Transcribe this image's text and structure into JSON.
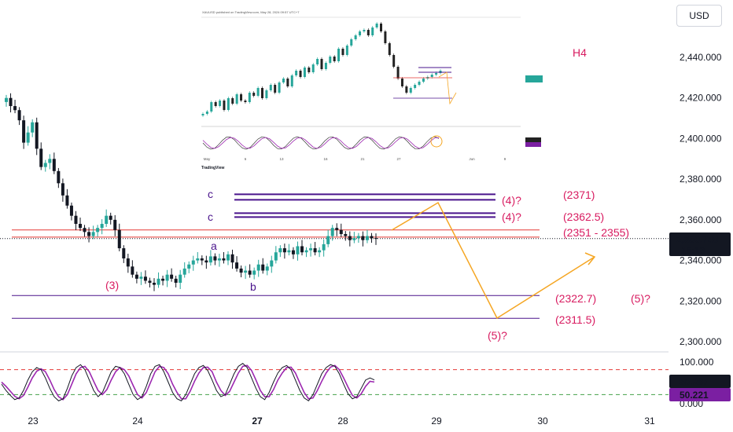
{
  "currency": "USD",
  "timeframe": "H4",
  "inset": {
    "header": "XAUUSD published on TradingView.com, May 28, 2024 09:57 UTC+7",
    "logo": "TradingView",
    "x_labels": [
      "May",
      "6",
      "13",
      "16",
      "21",
      "27",
      "Jun",
      "9"
    ]
  },
  "chart_data": {
    "type": "candlestick",
    "y_ticks": [
      "2,440.000",
      "2,420.000",
      "2,400.000",
      "2,380.000",
      "2,360.000",
      "2,340.000",
      "2,320.000",
      "2,300.000"
    ],
    "y_tick_values": [
      2440,
      2420,
      2400,
      2380,
      2360,
      2340,
      2320,
      2300
    ],
    "x_ticks": [
      "23",
      "24",
      "27",
      "28",
      "29",
      "30",
      "31"
    ],
    "ylim": [
      2295,
      2462
    ],
    "last_price": "2,350.740",
    "last_price_value": 2350.74,
    "countdown": "15:13",
    "close_series": [
      2420,
      2416,
      2414,
      2409,
      2398,
      2403,
      2408,
      2395,
      2386,
      2388,
      2390,
      2384,
      2378,
      2372,
      2367,
      2362,
      2358,
      2356,
      2354,
      2352,
      2354,
      2356,
      2358,
      2362,
      2360,
      2355,
      2346,
      2341,
      2337,
      2333,
      2331,
      2332,
      2330,
      2329,
      2328,
      2331,
      2330,
      2333,
      2331,
      2329,
      2333,
      2336,
      2338,
      2340,
      2341,
      2340,
      2339,
      2342,
      2340,
      2341,
      2340,
      2343,
      2339,
      2336,
      2334,
      2335,
      2333,
      2335,
      2338,
      2335,
      2337,
      2340,
      2344,
      2346,
      2344,
      2345,
      2343,
      2347,
      2344,
      2345,
      2346,
      2344,
      2345,
      2348,
      2352,
      2356,
      2355,
      2353,
      2352,
      2350,
      2351,
      2352,
      2350,
      2352,
      2351,
      2350.74
    ],
    "levels": [
      {
        "value": 2371,
        "label": "(2371)",
        "wave": "(4)?",
        "leg": "c"
      },
      {
        "value": 2362.5,
        "label": "(2362.5)",
        "wave": "(4)?",
        "leg": "c"
      },
      {
        "value": 2355,
        "label": "(2351 - 2355)"
      },
      {
        "value": 2322.7,
        "label": "(2322.7)"
      },
      {
        "value": 2311.5,
        "label": "(2311.5)"
      }
    ],
    "wave_labels": {
      "w3": "(3)",
      "a": "a",
      "b": "b",
      "w5a": "(5)?",
      "w5b": "(5)?"
    },
    "oscillator": {
      "y_ticks": [
        "100.000",
        "0.000"
      ],
      "value1": "55.287",
      "value2": "50.221",
      "upper_level": 80,
      "lower_level": 20,
      "k": [
        45,
        30,
        18,
        8,
        12,
        30,
        55,
        75,
        85,
        80,
        60,
        35,
        15,
        5,
        10,
        35,
        65,
        85,
        92,
        80,
        55,
        30,
        15,
        25,
        50,
        75,
        88,
        85,
        70,
        45,
        20,
        8,
        15,
        40,
        70,
        88,
        92,
        75,
        50,
        25,
        10,
        5,
        20,
        45,
        70,
        85,
        90,
        78,
        55,
        30,
        15,
        20,
        45,
        70,
        88,
        95,
        85,
        60,
        35,
        15,
        8,
        25,
        50,
        72,
        85,
        90,
        80,
        55,
        30,
        12,
        5,
        20,
        45,
        70,
        85,
        92,
        88,
        70,
        45,
        22,
        10,
        15,
        35,
        55,
        60,
        55.3
      ],
      "d": [
        50,
        40,
        28,
        16,
        10,
        18,
        38,
        60,
        76,
        82,
        75,
        55,
        32,
        15,
        8,
        20,
        45,
        70,
        85,
        88,
        75,
        52,
        30,
        20,
        32,
        55,
        75,
        85,
        80,
        65,
        42,
        20,
        12,
        25,
        50,
        75,
        88,
        85,
        70,
        45,
        25,
        10,
        10,
        28,
        52,
        72,
        85,
        86,
        75,
        50,
        30,
        18,
        28,
        50,
        72,
        88,
        90,
        78,
        55,
        30,
        15,
        15,
        32,
        55,
        72,
        85,
        86,
        72,
        48,
        25,
        10,
        12,
        30,
        52,
        72,
        86,
        90,
        80,
        60,
        38,
        18,
        12,
        22,
        40,
        52,
        50.2
      ]
    }
  }
}
